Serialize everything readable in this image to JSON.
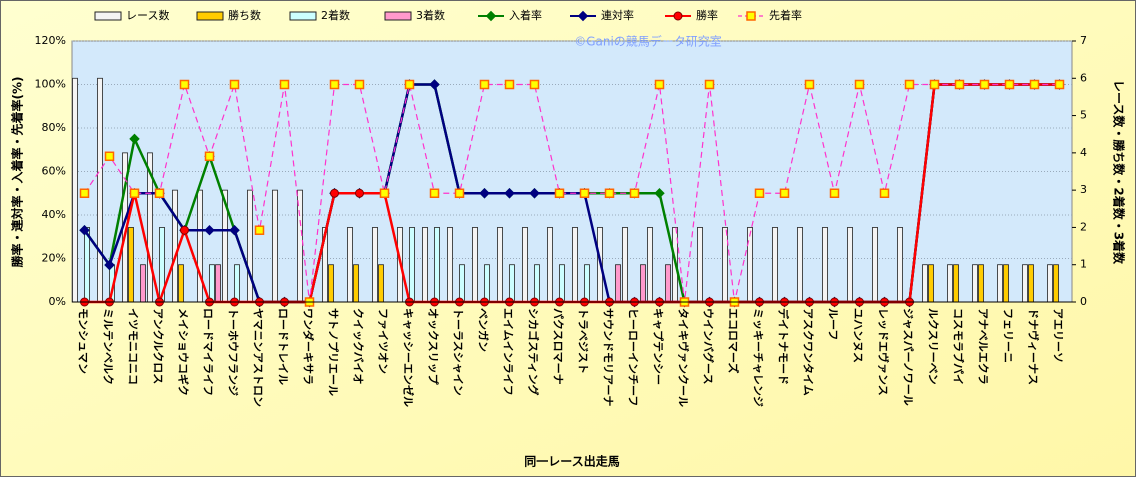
{
  "chart_data": {
    "type": "combo",
    "xlabel": "同一レース出走馬",
    "ylabel": "勝率・連対率・入着率・先着率(%)",
    "y2label": "レース数・勝ち数・2着数・3着数",
    "annotation": "©Ganiの競馬データ研究室",
    "categories": [
      "モンシュマン",
      "ミルテンベルク",
      "イツモニコニコ",
      "アンクルクロス",
      "メイショウコギク",
      "ロードマイライフ",
      "トーホウフランジ",
      "ヤマニンアストロン",
      "ロードトレイル",
      "ワンダーキサラ",
      "サトノプリエール",
      "クイックバイオ",
      "ファイツオン",
      "キャッシーエンゼル",
      "オックスリップ",
      "トーラスシャイン",
      "ベンガン",
      "エイムインライフ",
      "シカゴスティング",
      "パクスロマーナ",
      "トラベジスト",
      "サウンドモリアーナ",
      "ヒーローインチーフ",
      "キャプテンシー",
      "タイキヴァンクール",
      "ウインバグース",
      "エコロマーズ",
      "ミッキーチャレンジ",
      "デイトナモード",
      "アスクワンタイム",
      "ルーフ",
      "ユハンヌス",
      "レッドエヴァンス",
      "ジャスパーノワール",
      "ルクスリーベン",
      "コスモラブパイ",
      "アナベルエクラ",
      "フェリーニ",
      "ドナヴィーナス",
      "アエリーソ"
    ],
    "ylim": [
      0,
      120
    ],
    "yticks": [
      {
        "value": 0,
        "label": "0%"
      },
      {
        "value": 20,
        "label": "20%"
      },
      {
        "value": 40,
        "label": "40%"
      },
      {
        "value": 60,
        "label": "60%"
      },
      {
        "value": 80,
        "label": "80%"
      },
      {
        "value": 100,
        "label": "100%"
      },
      {
        "value": 120,
        "label": "120%"
      }
    ],
    "y2lim": [
      0,
      7
    ],
    "y2ticks": [
      0,
      1,
      2,
      3,
      4,
      5,
      6,
      7
    ],
    "grid": true,
    "series": [
      {
        "name": "レース数",
        "type": "bar",
        "axis": "y2",
        "color": "#f4f4f4",
        "values": [
          6,
          6,
          4,
          4,
          3,
          3,
          3,
          3,
          3,
          3,
          2,
          2,
          2,
          2,
          2,
          2,
          2,
          2,
          2,
          2,
          2,
          2,
          2,
          2,
          2,
          2,
          2,
          2,
          2,
          2,
          2,
          2,
          2,
          2,
          1,
          1,
          1,
          1,
          1,
          1
        ]
      },
      {
        "name": "勝ち数",
        "type": "bar",
        "axis": "y2",
        "color": "#ffcc00",
        "values": [
          0,
          0,
          2,
          0,
          1,
          0,
          0,
          0,
          0,
          0,
          1,
          1,
          1,
          0,
          0,
          0,
          0,
          0,
          0,
          0,
          0,
          0,
          0,
          0,
          0,
          0,
          0,
          0,
          0,
          0,
          0,
          0,
          0,
          0,
          1,
          1,
          1,
          1,
          1,
          1
        ]
      },
      {
        "name": "2着数",
        "type": "bar",
        "axis": "y2",
        "color": "#ccffff",
        "values": [
          2,
          1,
          0,
          2,
          0,
          1,
          1,
          0,
          0,
          0,
          0,
          0,
          0,
          2,
          2,
          1,
          1,
          1,
          1,
          1,
          1,
          0,
          0,
          0,
          0,
          0,
          0,
          0,
          0,
          0,
          0,
          0,
          0,
          0,
          0,
          0,
          0,
          0,
          0,
          0
        ]
      },
      {
        "name": "3着数",
        "type": "bar",
        "axis": "y2",
        "color": "#ff99cc",
        "values": [
          0,
          0,
          1,
          0,
          0,
          1,
          0,
          0,
          0,
          0,
          0,
          0,
          0,
          0,
          0,
          0,
          0,
          0,
          0,
          0,
          0,
          1,
          1,
          1,
          0,
          0,
          0,
          0,
          0,
          0,
          0,
          0,
          0,
          0,
          0,
          0,
          0,
          0,
          0,
          0
        ]
      },
      {
        "name": "入着率",
        "type": "line",
        "axis": "y",
        "color": "#008000",
        "marker": "diamond",
        "values": [
          33,
          17,
          75,
          50,
          33,
          67,
          33,
          0,
          0,
          0,
          50,
          50,
          50,
          100,
          100,
          50,
          50,
          50,
          50,
          50,
          50,
          50,
          50,
          50,
          0,
          0,
          0,
          0,
          0,
          0,
          0,
          0,
          0,
          0,
          100,
          100,
          100,
          100,
          100,
          100
        ]
      },
      {
        "name": "連対率",
        "type": "line",
        "axis": "y",
        "color": "#000080",
        "marker": "diamond",
        "values": [
          33,
          17,
          50,
          50,
          33,
          33,
          33,
          0,
          0,
          0,
          50,
          50,
          50,
          100,
          100,
          50,
          50,
          50,
          50,
          50,
          50,
          0,
          0,
          0,
          0,
          0,
          0,
          0,
          0,
          0,
          0,
          0,
          0,
          0,
          100,
          100,
          100,
          100,
          100,
          100
        ]
      },
      {
        "name": "勝率",
        "type": "line",
        "axis": "y",
        "color": "#ff0000",
        "marker": "circle",
        "values": [
          0,
          0,
          50,
          0,
          33,
          0,
          0,
          0,
          0,
          0,
          50,
          50,
          50,
          0,
          0,
          0,
          0,
          0,
          0,
          0,
          0,
          0,
          0,
          0,
          0,
          0,
          0,
          0,
          0,
          0,
          0,
          0,
          0,
          0,
          100,
          100,
          100,
          100,
          100,
          100
        ]
      },
      {
        "name": "先着率",
        "type": "line",
        "axis": "y",
        "color": "#ff33cc",
        "marker": "square",
        "line_style": "dashed",
        "values": [
          50,
          67,
          50,
          50,
          100,
          67,
          100,
          33,
          100,
          0,
          100,
          100,
          50,
          100,
          50,
          50,
          100,
          100,
          100,
          50,
          50,
          50,
          50,
          100,
          0,
          100,
          0,
          50,
          50,
          100,
          50,
          100,
          50,
          100,
          100,
          100,
          100,
          100,
          100,
          100
        ]
      }
    ]
  }
}
